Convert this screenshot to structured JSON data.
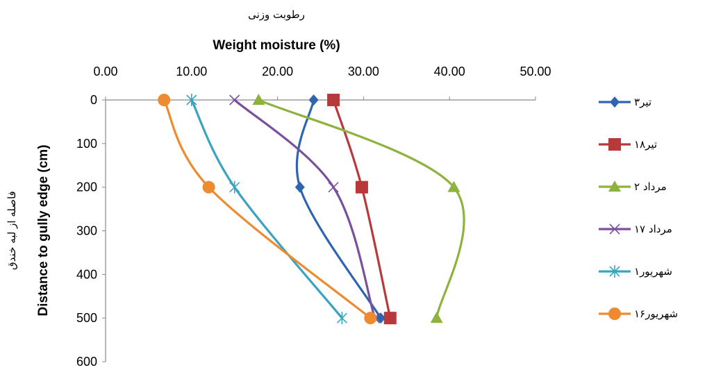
{
  "chart_data": {
    "type": "line",
    "title": "",
    "xlabel": "Weight moisture (%)",
    "xlabel_fa": "رطوبت وزنی",
    "ylabel": "Distance to gully edge (cm)",
    "ylabel_fa": "فاصله از لبه خندق",
    "x_axis_position": "top",
    "y_axis_inverted": true,
    "xlim": [
      0,
      50
    ],
    "ylim": [
      0,
      600
    ],
    "x_ticks": [
      "0.00",
      "10.00",
      "20.00",
      "30.00",
      "40.00",
      "50.00"
    ],
    "y_ticks": [
      "0",
      "100",
      "200",
      "300",
      "400",
      "500",
      "600"
    ],
    "grid": false,
    "legend_position": "right",
    "series": [
      {
        "name": "۳تیر",
        "color": "#2E64B0",
        "marker": "diamond",
        "points": [
          {
            "x": 24.2,
            "y": 0
          },
          {
            "x": 22.6,
            "y": 200
          },
          {
            "x": 32.0,
            "y": 500
          }
        ]
      },
      {
        "name": "۱۸تیر",
        "color": "#B8393A",
        "marker": "square",
        "points": [
          {
            "x": 26.5,
            "y": 0
          },
          {
            "x": 29.8,
            "y": 200
          },
          {
            "x": 33.1,
            "y": 500
          }
        ]
      },
      {
        "name": "۲ مرداد",
        "color": "#8DB23E",
        "marker": "triangle",
        "points": [
          {
            "x": 17.8,
            "y": 0
          },
          {
            "x": 40.5,
            "y": 200
          },
          {
            "x": 38.5,
            "y": 500
          }
        ]
      },
      {
        "name": "۱۷ مرداد",
        "color": "#7A4F9E",
        "marker": "x",
        "points": [
          {
            "x": 15.0,
            "y": 0
          },
          {
            "x": 26.5,
            "y": 200
          },
          {
            "x": 31.3,
            "y": 500
          }
        ]
      },
      {
        "name": "۱شهریور",
        "color": "#3AA3C2",
        "marker": "star",
        "points": [
          {
            "x": 10.0,
            "y": 0
          },
          {
            "x": 15.0,
            "y": 200
          },
          {
            "x": 27.5,
            "y": 500
          }
        ]
      },
      {
        "name": "۱۶شهریور",
        "color": "#EE8A2F",
        "marker": "circle",
        "points": [
          {
            "x": 6.8,
            "y": 0
          },
          {
            "x": 12.0,
            "y": 200
          },
          {
            "x": 30.8,
            "y": 500
          }
        ]
      }
    ]
  }
}
